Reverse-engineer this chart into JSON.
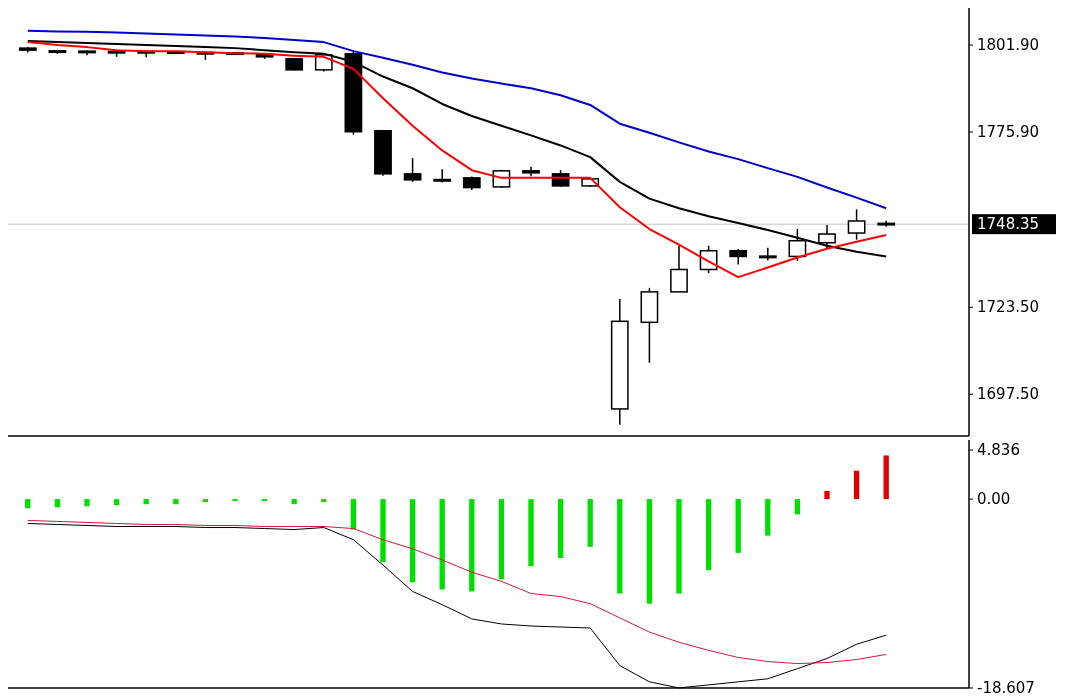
{
  "chart_data": [
    {
      "type": "candlestick",
      "categories": [
        null,
        null,
        null,
        null,
        null,
        null,
        null,
        null,
        null,
        null,
        null,
        null,
        null,
        null,
        null,
        null,
        null,
        null,
        null,
        null,
        null,
        null,
        null,
        null,
        null,
        null,
        null,
        null,
        null,
        null
      ],
      "ohlc": [
        [
          1801.0,
          1801.3,
          1799.7,
          1800.4
        ],
        [
          1800.2,
          1800.5,
          1799.3,
          1800.0
        ],
        [
          1800.1,
          1800.4,
          1798.9,
          1799.9
        ],
        [
          1799.9,
          1800.2,
          1798.4,
          1800.0
        ],
        [
          1800.0,
          1800.1,
          1798.3,
          1799.9
        ],
        [
          1799.9,
          1800.0,
          1799.3,
          1799.7
        ],
        [
          1799.7,
          1799.9,
          1797.5,
          1799.6
        ],
        [
          1799.6,
          1799.8,
          1799.0,
          1799.4
        ],
        [
          1799.1,
          1799.4,
          1797.8,
          1798.4
        ],
        [
          1797.8,
          1798.0,
          1794.3,
          1794.5
        ],
        [
          1794.5,
          1799.3,
          1794.0,
          1799.0
        ],
        [
          1799.3,
          1800.4,
          1775.1,
          1776.0
        ],
        [
          1776.3,
          1776.3,
          1762.8,
          1763.4
        ],
        [
          1763.4,
          1768.1,
          1761.0,
          1761.6
        ],
        [
          1761.7,
          1764.8,
          1760.8,
          1761.5
        ],
        [
          1762.2,
          1762.6,
          1758.6,
          1759.3
        ],
        [
          1759.5,
          1764.6,
          1759.2,
          1764.3
        ],
        [
          1764.3,
          1765.5,
          1762.7,
          1763.7
        ],
        [
          1763.4,
          1764.5,
          1759.5,
          1759.8
        ],
        [
          1759.8,
          1762.2,
          1759.5,
          1761.9
        ],
        [
          1693.1,
          1726.0,
          1688.4,
          1719.3
        ],
        [
          1719.0,
          1729.3,
          1706.9,
          1728.1
        ],
        [
          1728.1,
          1741.9,
          1728.1,
          1734.8
        ],
        [
          1734.8,
          1741.9,
          1733.7,
          1740.4
        ],
        [
          1740.4,
          1740.9,
          1736.3,
          1738.7
        ],
        [
          1738.6,
          1741.3,
          1737.5,
          1738.8
        ],
        [
          1738.7,
          1746.9,
          1737.3,
          1743.4
        ],
        [
          1742.8,
          1748.1,
          1741.0,
          1745.4
        ],
        [
          1745.7,
          1752.8,
          1743.7,
          1749.3
        ],
        [
          1748.6,
          1749.4,
          1747.6,
          1748.35
        ]
      ],
      "series": [
        {
          "type": "line",
          "color": "#0000cc",
          "values": [
            1806.2,
            1806.0,
            1805.9,
            1805.7,
            1805.4,
            1805.1,
            1804.8,
            1804.5,
            1804.0,
            1803.4,
            1802.8,
            1800.1,
            1798.1,
            1796.0,
            1793.7,
            1791.9,
            1790.4,
            1789.0,
            1786.9,
            1784.0,
            1778.4,
            1775.7,
            1772.8,
            1770.1,
            1767.8,
            1765.1,
            1762.5,
            1759.3,
            1756.3,
            1753.1
          ]
        },
        {
          "type": "line",
          "color": "#000000",
          "values": [
            1803.1,
            1802.8,
            1802.5,
            1802.2,
            1801.9,
            1801.6,
            1801.3,
            1801.0,
            1800.4,
            1799.8,
            1799.3,
            1796.9,
            1792.5,
            1789.0,
            1784.3,
            1780.7,
            1777.8,
            1774.9,
            1771.9,
            1768.4,
            1761.0,
            1756.0,
            1753.1,
            1750.7,
            1748.7,
            1746.6,
            1744.3,
            1741.9,
            1740.1,
            1738.7
          ]
        },
        {
          "type": "line",
          "color": "#ff0000",
          "values": [
            1802.8,
            1801.9,
            1801.3,
            1800.4,
            1800.1,
            1800.1,
            1799.8,
            1799.5,
            1799.3,
            1798.7,
            1798.4,
            1794.8,
            1786.0,
            1777.8,
            1770.4,
            1764.5,
            1762.2,
            1762.2,
            1762.2,
            1762.2,
            1753.4,
            1746.9,
            1742.2,
            1737.2,
            1732.5,
            1735.4,
            1738.4,
            1741.0,
            1743.1,
            1745.1
          ]
        }
      ],
      "ylim": [
        1685,
        1813
      ],
      "yticks": [
        {
          "value": 1801.9,
          "label": "1801.90"
        },
        {
          "value": 1775.9,
          "label": "1775.90"
        },
        {
          "value": 1723.5,
          "label": "1723.50"
        },
        {
          "value": 1697.5,
          "label": "1697.50"
        }
      ],
      "ref_lines": [
        {
          "axis": "y",
          "value": 1748.35,
          "label": "1748.35",
          "color": "#c0c0c0"
        }
      ]
    },
    {
      "type": "bar",
      "categories": [
        null,
        null,
        null,
        null,
        null,
        null,
        null,
        null,
        null,
        null,
        null,
        null,
        null,
        null,
        null,
        null,
        null,
        null,
        null,
        null,
        null,
        null,
        null,
        null,
        null,
        null,
        null,
        null,
        null,
        null
      ],
      "series": [
        {
          "type": "bar",
          "values": [
            -0.9,
            -0.8,
            -0.7,
            -0.6,
            -0.5,
            -0.5,
            -0.3,
            -0.2,
            -0.2,
            -0.5,
            -0.3,
            -3.0,
            -6.2,
            -8.2,
            -8.9,
            -9.1,
            -7.9,
            -6.6,
            -5.8,
            -4.7,
            -9.3,
            -10.3,
            -9.3,
            -7.0,
            -5.3,
            -3.6,
            -1.5,
            0.8,
            2.8,
            4.3
          ],
          "colors": [
            "#00e000",
            "#00e000",
            "#00e000",
            "#00e000",
            "#00e000",
            "#00e000",
            "#00e000",
            "#00e000",
            "#00e000",
            "#00e000",
            "#00e000",
            "#00e000",
            "#00e000",
            "#00e000",
            "#00e000",
            "#00e000",
            "#00e000",
            "#00e000",
            "#00e000",
            "#00e000",
            "#00e000",
            "#00e000",
            "#00e000",
            "#00e000",
            "#00e000",
            "#00e000",
            "#00e000",
            "#e00000",
            "#e00000",
            "#e00000"
          ]
        },
        {
          "type": "line",
          "color": "#000000",
          "values": [
            -2.4,
            -2.5,
            -2.6,
            -2.7,
            -2.7,
            -2.7,
            -2.8,
            -2.8,
            -2.9,
            -3.0,
            -2.8,
            -4.0,
            -6.5,
            -9.1,
            -10.4,
            -11.8,
            -12.3,
            -12.5,
            -12.6,
            -12.7,
            -16.4,
            -18.0,
            -18.6,
            -18.3,
            -18.0,
            -17.7,
            -16.7,
            -15.7,
            -14.3,
            -13.4
          ]
        },
        {
          "type": "line",
          "color": "#dc143c",
          "values": [
            -2.1,
            -2.2,
            -2.3,
            -2.4,
            -2.5,
            -2.5,
            -2.6,
            -2.6,
            -2.7,
            -2.7,
            -2.7,
            -2.9,
            -4.0,
            -4.9,
            -6.0,
            -7.2,
            -8.1,
            -9.3,
            -9.6,
            -10.3,
            -11.7,
            -13.1,
            -14.1,
            -14.9,
            -15.6,
            -16.0,
            -16.2,
            -16.1,
            -15.8,
            -15.3
          ]
        }
      ],
      "ylim": [
        -18.607,
        4.836
      ],
      "yticks": [
        4.836,
        {
          "value": 0,
          "label": "0.00"
        },
        -18.607
      ]
    }
  ]
}
